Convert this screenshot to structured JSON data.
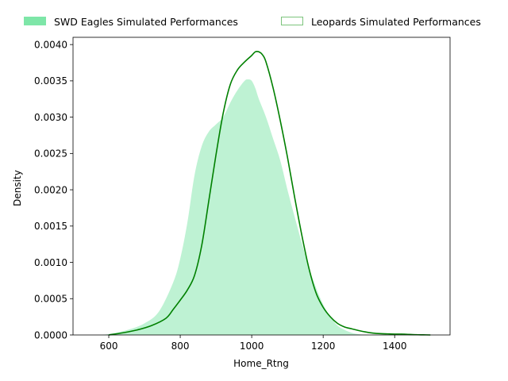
{
  "chart_data": {
    "type": "area",
    "title": "",
    "xlabel": "Home_Rtng",
    "ylabel": "Density",
    "xlim": [
      500,
      1555
    ],
    "ylim": [
      0,
      0.0041
    ],
    "xticks": [
      600,
      800,
      1000,
      1200,
      1400
    ],
    "xtick_labels": [
      "600",
      "800",
      "1000",
      "1200",
      "1400"
    ],
    "yticks": [
      0,
      0.0005,
      0.001,
      0.0015,
      0.002,
      0.0025,
      0.003,
      0.0035,
      0.004
    ],
    "ytick_labels": [
      "0.0000",
      "0.0005",
      "0.0010",
      "0.0015",
      "0.0020",
      "0.0025",
      "0.0030",
      "0.0035",
      "0.0040"
    ],
    "grid": false,
    "legend_position": "top, outside",
    "series": [
      {
        "name": "SWD Eagles Simulated Performances",
        "style": "filled",
        "fill_color": "#7ee6a8",
        "x": [
          583,
          620,
          660,
          700,
          740,
          780,
          800,
          820,
          840,
          860,
          880,
          900,
          920,
          940,
          960,
          980,
          990,
          1000,
          1010,
          1020,
          1040,
          1060,
          1080,
          1100,
          1120,
          1140,
          1160,
          1180,
          1200,
          1220,
          1240,
          1260,
          1280,
          1300,
          1320,
          1334
        ],
        "y": [
          0,
          3e-05,
          8e-05,
          0.00016,
          0.00032,
          0.00072,
          0.00105,
          0.00155,
          0.0022,
          0.0026,
          0.0028,
          0.0029,
          0.003,
          0.0032,
          0.00337,
          0.0035,
          0.00352,
          0.0035,
          0.0034,
          0.00325,
          0.003,
          0.0027,
          0.0024,
          0.002,
          0.00163,
          0.00127,
          0.00093,
          0.00065,
          0.00042,
          0.00025,
          0.00013,
          7e-05,
          3e-05,
          1e-05,
          4e-06,
          0
        ]
      },
      {
        "name": "Leopards Simulated Performances",
        "style": "line",
        "color": "#008000",
        "x": [
          600,
          640,
          680,
          720,
          760,
          780,
          800,
          820,
          840,
          860,
          880,
          900,
          920,
          940,
          960,
          980,
          1000,
          1010,
          1020,
          1030,
          1040,
          1060,
          1080,
          1100,
          1120,
          1140,
          1160,
          1180,
          1200,
          1220,
          1240,
          1260,
          1280,
          1300,
          1320,
          1340,
          1360,
          1380,
          1400,
          1420,
          1440,
          1460,
          1480,
          1500
        ],
        "y": [
          0,
          3e-05,
          7e-05,
          0.00013,
          0.00023,
          0.00035,
          0.00048,
          0.00062,
          0.00082,
          0.00123,
          0.00185,
          0.00248,
          0.00305,
          0.00345,
          0.00365,
          0.00376,
          0.00385,
          0.0039,
          0.0039,
          0.00386,
          0.00376,
          0.0034,
          0.00295,
          0.00245,
          0.0019,
          0.00138,
          0.00092,
          0.00058,
          0.00038,
          0.00025,
          0.00016,
          0.00011,
          8.5e-05,
          6e-05,
          4e-05,
          2.5e-05,
          1.8e-05,
          1.5e-05,
          1.2e-05,
          1.2e-05,
          8e-06,
          4e-06,
          2e-06,
          0
        ]
      }
    ]
  }
}
